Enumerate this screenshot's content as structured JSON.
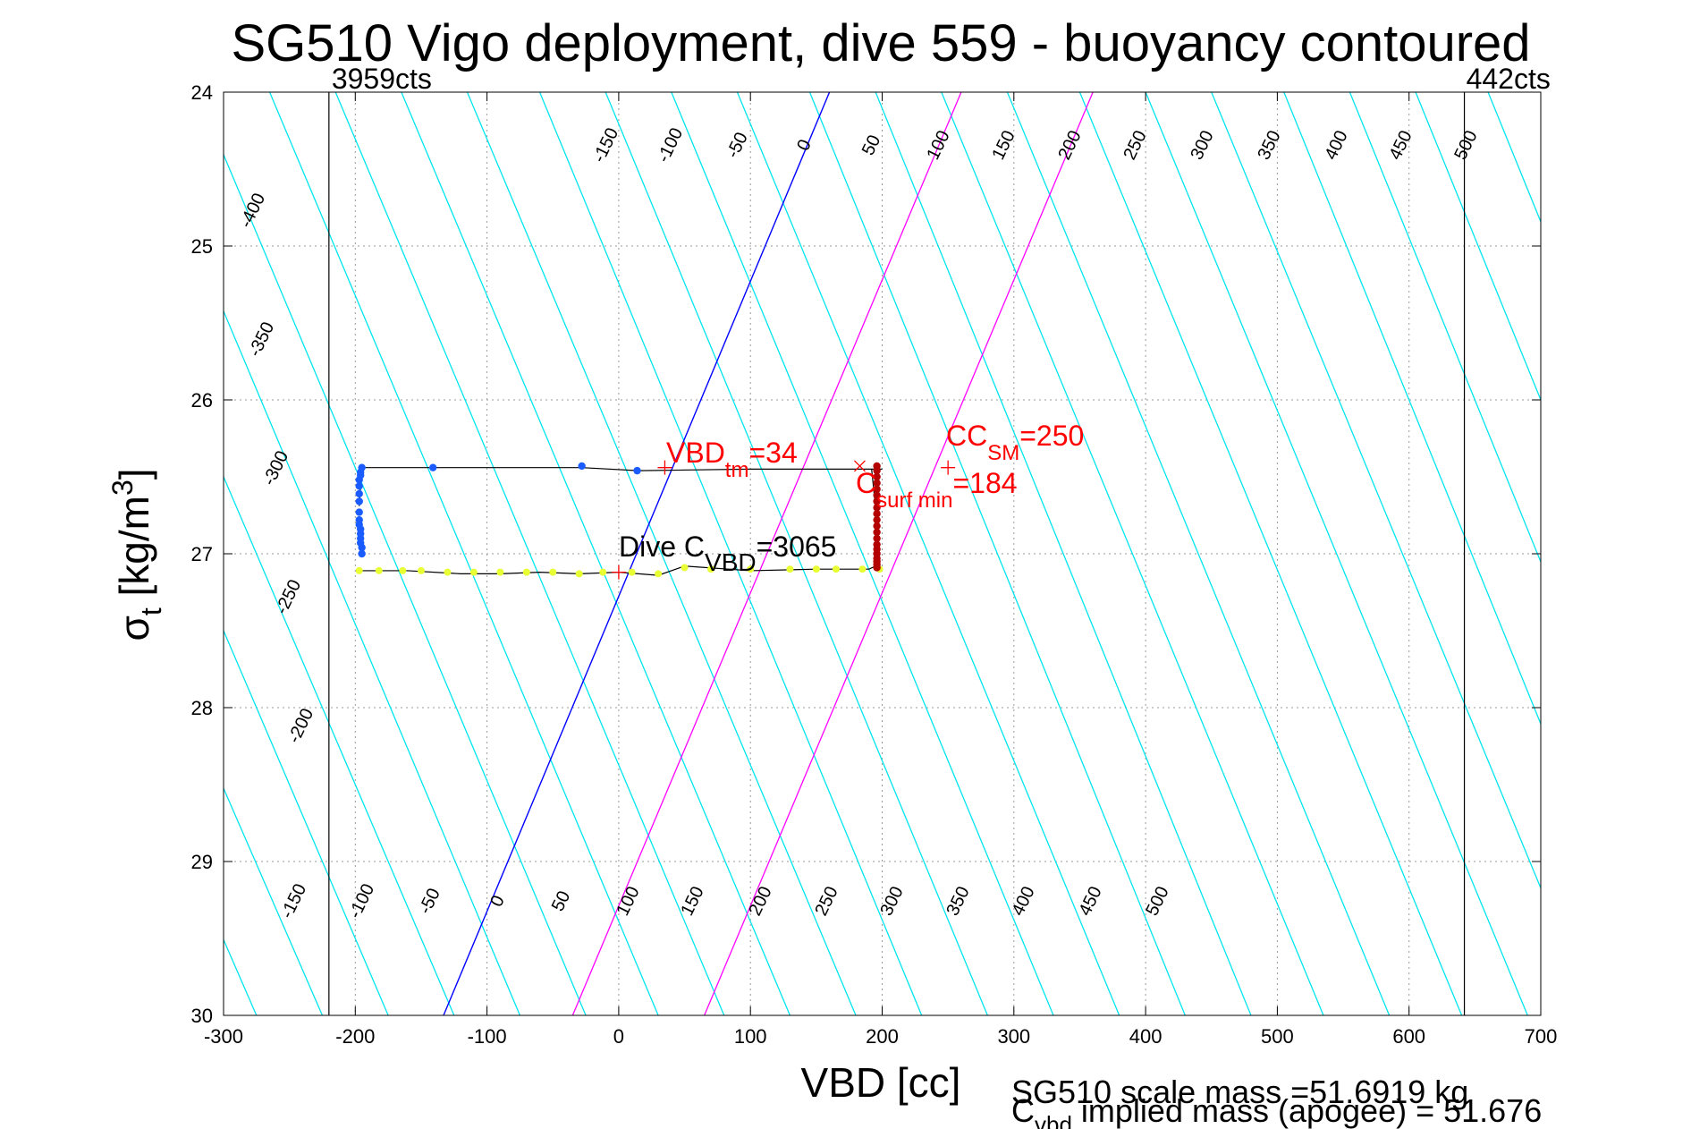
{
  "chart_data": {
    "type": "scatter",
    "title": "SG510 Vigo deployment, dive 559 - buoyancy contoured",
    "xlabel": "VBD [cc]",
    "ylabel_main": "σ",
    "ylabel_sub": "t",
    "ylabel_unit": " [kg/m",
    "ylabel_sup": "3",
    "ylabel_close": "]",
    "xlim": [
      -300,
      700
    ],
    "ylim": [
      30,
      24
    ],
    "xticks": [
      "-300",
      "-200",
      "-100",
      "0",
      "100",
      "200",
      "300",
      "400",
      "500",
      "600",
      "700"
    ],
    "yticks": [
      "24",
      "25",
      "26",
      "27",
      "28",
      "29",
      "30"
    ],
    "grid": true,
    "vlines": [
      {
        "x": -220,
        "label": "3959cts"
      },
      {
        "x": 642,
        "label": "442cts"
      }
    ],
    "contour_lines": [
      {
        "vbd_at_24": -580,
        "vbd_at_30": -275
      },
      {
        "vbd_at_24": -530,
        "vbd_at_30": -225
      },
      {
        "vbd_at_24": -475,
        "vbd_at_30": -175
      },
      {
        "vbd_at_24": -425,
        "vbd_at_30": -125
      },
      {
        "vbd_at_24": -370,
        "vbd_at_30": -75
      },
      {
        "vbd_at_24": -320,
        "vbd_at_30": -25
      },
      {
        "vbd_at_24": -265,
        "vbd_at_30": 30
      },
      {
        "vbd_at_24": -215,
        "vbd_at_30": 80
      },
      {
        "vbd_at_24": -165,
        "vbd_at_30": 130
      },
      {
        "vbd_at_24": -115,
        "vbd_at_30": 180
      },
      {
        "vbd_at_24": -60,
        "vbd_at_30": 230
      },
      {
        "vbd_at_24": -10,
        "vbd_at_30": 280
      },
      {
        "vbd_at_24": 40,
        "vbd_at_30": 330
      },
      {
        "vbd_at_24": 90,
        "vbd_at_30": 380
      },
      {
        "vbd_at_24": 145,
        "vbd_at_30": 430
      },
      {
        "vbd_at_24": 195,
        "vbd_at_30": 480
      },
      {
        "vbd_at_24": 245,
        "vbd_at_30": 535
      },
      {
        "vbd_at_24": 295,
        "vbd_at_30": 585
      },
      {
        "vbd_at_24": 350,
        "vbd_at_30": 640
      },
      {
        "vbd_at_24": 400,
        "vbd_at_30": 690
      },
      {
        "vbd_at_24": 450,
        "vbd_at_30": 740
      },
      {
        "vbd_at_24": 505,
        "vbd_at_30": 790
      },
      {
        "vbd_at_24": 555,
        "vbd_at_30": 840
      },
      {
        "vbd_at_24": 605,
        "vbd_at_30": 890
      },
      {
        "vbd_at_24": 660,
        "vbd_at_30": 945
      }
    ],
    "zero_line": {
      "vbd_at_24": 160,
      "vbd_at_30": -133
    },
    "magenta_lines": [
      {
        "vbd_at_24": 260,
        "vbd_at_30": -35
      },
      {
        "vbd_at_24": 360,
        "vbd_at_30": 65
      }
    ],
    "contour_labels_top": [
      "-150",
      "-100",
      "-50",
      "0",
      "50",
      "100",
      "150",
      "200",
      "250",
      "300",
      "350",
      "400",
      "450",
      "500"
    ],
    "contour_labels_left": [
      "-400",
      "-350",
      "-300",
      "-250",
      "-200"
    ],
    "contour_labels_bottom": [
      "-150",
      "-100",
      "-50",
      "0",
      "50",
      "100",
      "150",
      "200",
      "250",
      "300",
      "350",
      "400",
      "450",
      "500"
    ],
    "series": [
      {
        "kind": "track",
        "x": [
          -197,
          -195,
          -142,
          -28,
          15,
          100,
          200,
          192,
          195,
          195
        ],
        "y": [
          26.69,
          26.44,
          26.44,
          26.44,
          26.46,
          26.45,
          26.45,
          26.45,
          26.7,
          27.08
        ]
      },
      {
        "kind": "track",
        "x": [
          195,
          190,
          150,
          100,
          50,
          30,
          0,
          -30,
          -60,
          -90,
          -120,
          -160,
          -195
        ],
        "y": [
          27.08,
          27.1,
          27.1,
          27.11,
          27.08,
          27.14,
          27.12,
          27.13,
          27.12,
          27.13,
          27.13,
          27.11,
          27.11
        ]
      },
      {
        "kind": "descent",
        "color": "#1a5cff",
        "x": [
          -195,
          -195,
          -196,
          -196,
          -196,
          -196,
          -197,
          -197,
          -197,
          -197,
          -197,
          -197,
          -197,
          -196,
          -196,
          -195,
          -141,
          -28,
          14
        ],
        "y": [
          27.0,
          26.96,
          26.93,
          26.9,
          26.87,
          26.84,
          26.81,
          26.78,
          26.73,
          26.66,
          26.61,
          26.56,
          26.52,
          26.49,
          26.47,
          26.44,
          26.44,
          26.43,
          26.46
        ]
      },
      {
        "kind": "ascent",
        "color": "#e8ff33",
        "x": [
          -197,
          -182,
          -164,
          -150,
          -130,
          -110,
          -90,
          -70,
          -50,
          -30,
          -12,
          10,
          30,
          50,
          70,
          100,
          130,
          150,
          165,
          185,
          198
        ],
        "y": [
          27.11,
          27.11,
          27.11,
          27.11,
          27.12,
          27.12,
          27.12,
          27.12,
          27.12,
          27.13,
          27.12,
          27.12,
          27.13,
          27.09,
          27.1,
          27.1,
          27.1,
          27.1,
          27.1,
          27.1,
          27.1
        ]
      },
      {
        "kind": "bottom",
        "color": "#b30000",
        "x": [
          196,
          196,
          196,
          196,
          196,
          196,
          196,
          196,
          196,
          196,
          196,
          196,
          196,
          196,
          196,
          196,
          196,
          196,
          196,
          196
        ],
        "y": [
          26.43,
          26.46,
          26.5,
          26.54,
          26.58,
          26.62,
          26.66,
          26.7,
          26.74,
          26.78,
          26.82,
          26.86,
          26.9,
          26.94,
          26.97,
          27.0,
          27.03,
          27.05,
          27.07,
          27.09
        ]
      }
    ],
    "markers": [
      {
        "x": 35,
        "y": 26.44,
        "symbol": "+"
      },
      {
        "x": 250,
        "y": 26.44,
        "symbol": "+"
      },
      {
        "x": 183,
        "y": 26.43,
        "symbol": "x"
      },
      {
        "x": 0,
        "y": 27.12,
        "symbol": "+"
      }
    ],
    "annotations": {
      "vbd_tm": {
        "main": "VBD",
        "sub": "tm",
        "tail": "=34"
      },
      "cc_sm": {
        "main": "CC",
        "sub": "SM",
        "tail": "=250"
      },
      "c_surf": {
        "main": "C",
        "sub": "surf min",
        "tail": "=184"
      },
      "dive_c": {
        "main": "Dive C",
        "sub": "VBD",
        "tail": "=3065"
      }
    },
    "footer": {
      "line1": "SG510 scale mass =51.6919 kg",
      "line2_main": "C",
      "line2_sub": "vbd",
      "line2_tail": " implied mass (apogee) = 51.676"
    },
    "colors": {
      "contour": "#00e5ee",
      "zero": "#0000ff",
      "magenta": "#ff00ff",
      "annotation_red": "#ff0000",
      "track": "#000000",
      "grid": "#999999"
    }
  }
}
